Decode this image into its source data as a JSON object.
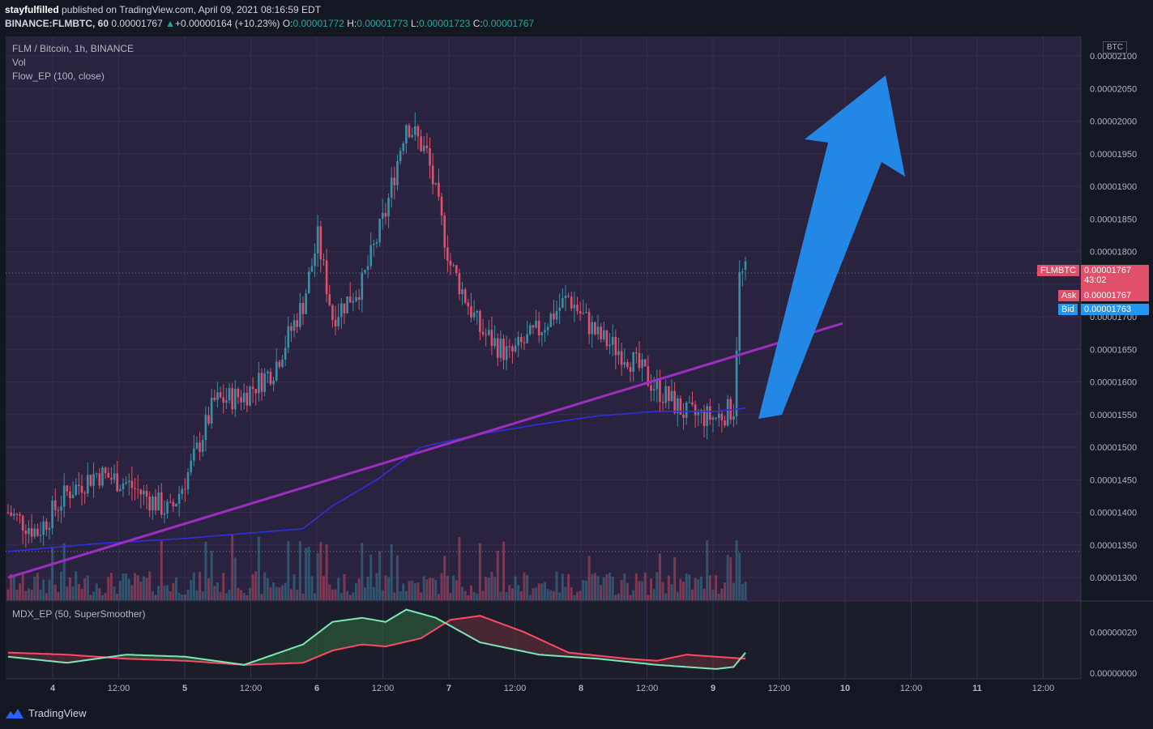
{
  "header": {
    "author": "stayfulfilled",
    "published": "published on TradingView.com, April 09, 2021 08:16:59 EDT",
    "symbol": "BINANCE:FLMBTC, 60",
    "last": "0.00001767",
    "change": "+0.00000164 (+10.23%)",
    "o_label": "O:",
    "o": "0.00001772",
    "h_label": "H:",
    "h": "0.00001773",
    "l_label": "L:",
    "l": "0.00001723",
    "c_label": "C:",
    "c": "0.00001767"
  },
  "legend": {
    "title": "FLM / Bitcoin, 1h, BINANCE",
    "vol": "Vol",
    "indicator": "Flow_EP (100, close)",
    "sub_indicator": "MDX_EP (50, SuperSmoother)"
  },
  "price_tags": {
    "currency": "BTC",
    "symbol_tag": "FLMBTC",
    "price": "0.00001767",
    "countdown": "43:02",
    "ask_label": "Ask",
    "ask": "0.00001767",
    "bid_label": "Bid",
    "bid": "0.00001763"
  },
  "footer": {
    "brand": "TradingView"
  },
  "colors": {
    "background": "#2a2340",
    "up": "#3a8fa6",
    "down": "#e0506a",
    "trendline": "#9c2fbf",
    "flow_line": "#2f2fe0",
    "arrow": "#2387e6",
    "mdx_green": "#7be7b4",
    "mdx_red": "#ff4a63"
  },
  "chart_data": [
    {
      "type": "candlestick",
      "title": "FLM / Bitcoin, 1h, BINANCE",
      "y_axis_ticks": [
        "0.00001300",
        "0.00001350",
        "0.00001400",
        "0.00001450",
        "0.00001500",
        "0.00001550",
        "0.00001600",
        "0.00001650",
        "0.00001700",
        "0.00001750",
        "0.00001800",
        "0.00001850",
        "0.00001900",
        "0.00001950",
        "0.00002000",
        "0.00002050",
        "0.00002100"
      ],
      "x_axis_ticks": [
        "4",
        "12:00",
        "5",
        "12:00",
        "6",
        "12:00",
        "7",
        "12:00",
        "8",
        "12:00",
        "9",
        "12:00",
        "10",
        "12:00",
        "11",
        "12:00"
      ],
      "ylim": [
        1.264e-05,
        2.13e-05
      ],
      "close_waypoints": [
        [
          0,
          1.4e-05
        ],
        [
          10,
          1.37e-05
        ],
        [
          20,
          1.43e-05
        ],
        [
          30,
          1.46e-05
        ],
        [
          40,
          1.445e-05
        ],
        [
          50,
          1.415e-05
        ],
        [
          55,
          1.4e-05
        ],
        [
          62,
          1.47e-05
        ],
        [
          70,
          1.57e-05
        ],
        [
          80,
          1.58e-05
        ],
        [
          90,
          1.62e-05
        ],
        [
          100,
          1.72e-05
        ],
        [
          105,
          1.82e-05
        ],
        [
          110,
          1.7e-05
        ],
        [
          120,
          1.75e-05
        ],
        [
          128,
          1.86e-05
        ],
        [
          135,
          2e-05
        ],
        [
          142,
          1.95e-05
        ],
        [
          150,
          1.78e-05
        ],
        [
          160,
          1.68e-05
        ],
        [
          170,
          1.64e-05
        ],
        [
          180,
          1.68e-05
        ],
        [
          190,
          1.73e-05
        ],
        [
          200,
          1.67e-05
        ],
        [
          210,
          1.64e-05
        ],
        [
          220,
          1.59e-05
        ],
        [
          230,
          1.55e-05
        ],
        [
          240,
          1.545e-05
        ],
        [
          246,
          1.56e-05
        ],
        [
          248,
          1.76e-05
        ],
        [
          250,
          1.767e-05
        ]
      ],
      "flow_ep_waypoints": [
        [
          0,
          1.34e-05
        ],
        [
          30,
          1.352e-05
        ],
        [
          60,
          1.36e-05
        ],
        [
          100,
          1.375e-05
        ],
        [
          110,
          1.41e-05
        ],
        [
          125,
          1.45e-05
        ],
        [
          140,
          1.5e-05
        ],
        [
          160,
          1.52e-05
        ],
        [
          180,
          1.535e-05
        ],
        [
          200,
          1.548e-05
        ],
        [
          220,
          1.555e-05
        ],
        [
          240,
          1.555e-05
        ],
        [
          250,
          1.56e-05
        ]
      ],
      "trendline": [
        [
          0,
          1.3e-05
        ],
        [
          283,
          1.69e-05
        ]
      ],
      "last_price": 1.767e-05
    },
    {
      "type": "line",
      "title": "MDX_EP (50, SuperSmoother)",
      "y_axis_ticks": [
        "0.00000000",
        "0.00000020"
      ],
      "ylim": [
        -2e-08,
        3.4e-07
      ],
      "series": [
        {
          "waypoints": [
            [
              0,
              8e-08
            ],
            [
              20,
              5e-08
            ],
            [
              40,
              9e-08
            ],
            [
              60,
              8e-08
            ],
            [
              70,
              6e-08
            ],
            [
              80,
              4e-08
            ],
            [
              100,
              1.4e-07
            ],
            [
              110,
              2.5e-07
            ],
            [
              120,
              2.7e-07
            ],
            [
              128,
              2.5e-07
            ],
            [
              135,
              3.1e-07
            ],
            [
              145,
              2.7e-07
            ],
            [
              160,
              1.5e-07
            ],
            [
              180,
              9e-08
            ],
            [
              200,
              7e-08
            ],
            [
              220,
              4e-08
            ],
            [
              240,
              2e-08
            ],
            [
              246,
              3e-08
            ],
            [
              250,
              1e-07
            ]
          ]
        },
        {
          "waypoints": [
            [
              0,
              1e-07
            ],
            [
              20,
              9e-08
            ],
            [
              40,
              7e-08
            ],
            [
              60,
              6e-08
            ],
            [
              80,
              4e-08
            ],
            [
              100,
              5e-08
            ],
            [
              110,
              1.1e-07
            ],
            [
              120,
              1.4e-07
            ],
            [
              128,
              1.3e-07
            ],
            [
              140,
              1.7e-07
            ],
            [
              150,
              2.6e-07
            ],
            [
              160,
              2.8e-07
            ],
            [
              175,
              2e-07
            ],
            [
              190,
              1e-07
            ],
            [
              210,
              7e-08
            ],
            [
              220,
              6e-08
            ],
            [
              230,
              9e-08
            ],
            [
              250,
              7e-08
            ]
          ]
        }
      ]
    }
  ]
}
